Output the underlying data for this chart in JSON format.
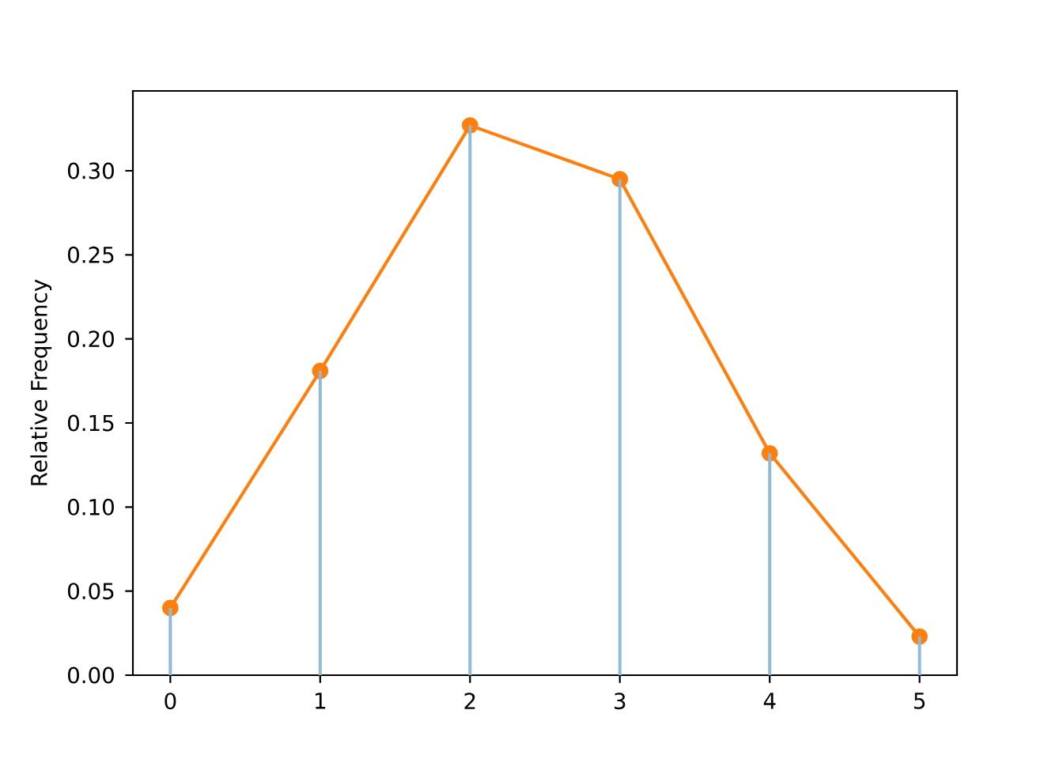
{
  "chart_data": {
    "type": "line",
    "ylabel": "Relative Frequency",
    "x": [
      0,
      1,
      2,
      3,
      4,
      5
    ],
    "series": [
      {
        "color": "#ff7f0e",
        "values": [
          0.04,
          0.181,
          0.327,
          0.295,
          0.132,
          0.023
        ]
      },
      {
        "type": "bar",
        "color": "#8fbbd9",
        "values": [
          0.04,
          0.181,
          0.327,
          0.295,
          0.132,
          0.023
        ]
      }
    ],
    "marker": "circle",
    "xlim": [
      -0.25,
      5.25
    ],
    "ylim": [
      0,
      0.3475
    ],
    "xticks": [
      0,
      1,
      2,
      3,
      4,
      5
    ],
    "yticks": [
      {
        "value": 0,
        "label": "0.00"
      },
      {
        "value": 0.05,
        "label": "0.05"
      },
      {
        "value": 0.1,
        "label": "0.10"
      },
      {
        "value": 0.15,
        "label": "0.15"
      },
      {
        "value": 0.2,
        "label": "0.20"
      },
      {
        "value": 0.25,
        "label": "0.25"
      },
      {
        "value": 0.3,
        "label": "0.30"
      }
    ]
  }
}
